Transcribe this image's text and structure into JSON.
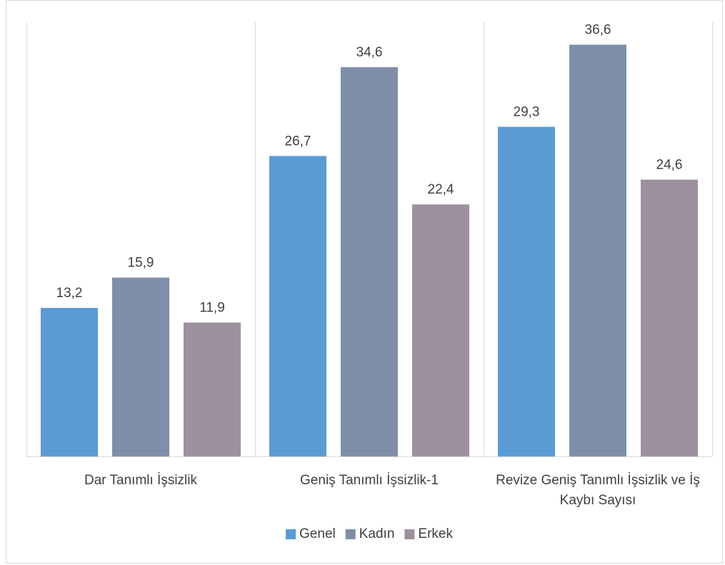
{
  "chart_data": {
    "type": "bar",
    "title": "",
    "xlabel": "",
    "ylabel": "",
    "ylim": [
      0,
      40
    ],
    "grid": false,
    "legend_position": "bottom",
    "categories": [
      [
        "Dar Tanımlı İşsizlik"
      ],
      [
        "Geniş Tanımlı İşsizlik-1"
      ],
      [
        "Revize Geniş Tanımlı İşsizlik ve İş",
        "Kaybı Sayısı"
      ]
    ],
    "series": [
      {
        "name": "Genel",
        "color": "#5b9bd5",
        "values": [
          13.2,
          26.7,
          29.3
        ],
        "labels": [
          "13,2",
          "26,7",
          "29,3"
        ]
      },
      {
        "name": "Kadın",
        "color": "#7f8fa9",
        "values": [
          15.9,
          34.6,
          36.6
        ],
        "labels": [
          "15,9",
          "34,6",
          "36,6"
        ]
      },
      {
        "name": "Erkek",
        "color": "#9e919f",
        "values": [
          11.9,
          22.4,
          24.6
        ],
        "labels": [
          "11,9",
          "22,4",
          "24,6"
        ]
      }
    ]
  }
}
